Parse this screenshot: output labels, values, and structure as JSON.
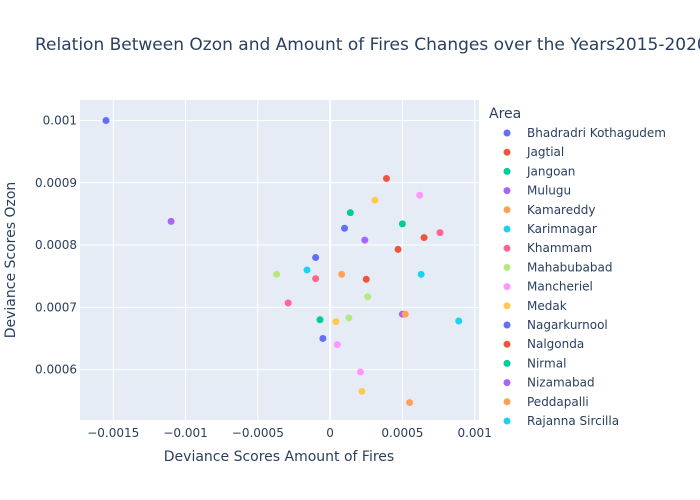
{
  "chart_data": {
    "type": "scatter",
    "title": "Relation Between Ozon and Amount of Fires Changes over the Years2015-2020",
    "xlabel": "Deviance Scores Amount of Fires",
    "ylabel": "Deviance Scores Ozon",
    "xlim": [
      -0.00173,
      0.00103
    ],
    "ylim": [
      0.000519,
      0.001033
    ],
    "x_ticks": [
      -0.0015,
      -0.001,
      -0.0005,
      0,
      0.0005,
      0.001
    ],
    "x_tick_labels": [
      "−0.0015",
      "−0.001",
      "−0.0005",
      "0",
      "0.0005",
      "0.001"
    ],
    "y_ticks": [
      0.0006,
      0.0007,
      0.0008,
      0.0009,
      0.001
    ],
    "y_tick_labels": [
      "0.0006",
      "0.0007",
      "0.0008",
      "0.0009",
      "0.001"
    ],
    "grid": true,
    "legend_title": "Area",
    "legend_position": "right",
    "series": [
      {
        "name": "Bhadradri Kothagudem",
        "color": "#636efa",
        "points": [
          [
            -0.00155,
            0.001
          ],
          [
            0.0001,
            0.000827
          ],
          [
            -5e-05,
            0.00065
          ]
        ]
      },
      {
        "name": "Jagtial",
        "color": "#EF553B",
        "points": [
          [
            0.00039,
            0.000907
          ],
          [
            0.00065,
            0.000812
          ],
          [
            0.00047,
            0.000793
          ],
          [
            0.00025,
            0.000745
          ]
        ]
      },
      {
        "name": "Jangoan",
        "color": "#00cc96",
        "points": [
          [
            0.00014,
            0.000852
          ],
          [
            0.0005,
            0.000834
          ],
          [
            -7e-05,
            0.00068
          ]
        ]
      },
      {
        "name": "Mulugu",
        "color": "#ab63fa",
        "points": [
          [
            -0.0011,
            0.000838
          ],
          [
            0.00024,
            0.000808
          ],
          [
            0.0005,
            0.000689
          ]
        ]
      },
      {
        "name": "Kamareddy",
        "color": "#FFA15A",
        "points": [
          [
            8e-05,
            0.000753
          ],
          [
            0.00052,
            0.000689
          ],
          [
            0.00055,
            0.000547
          ]
        ]
      },
      {
        "name": "Karimnagar",
        "color": "#19d3f3",
        "points": [
          [
            -0.00016,
            0.00076
          ],
          [
            0.00063,
            0.000753
          ],
          [
            0.00089,
            0.000678
          ]
        ]
      },
      {
        "name": "Khammam",
        "color": "#FF6692",
        "points": [
          [
            0.00076,
            0.00082
          ],
          [
            -0.0001,
            0.000746
          ],
          [
            -0.00029,
            0.000707
          ]
        ]
      },
      {
        "name": "Mahabubabad",
        "color": "#B6E880",
        "points": [
          [
            -0.00037,
            0.000753
          ],
          [
            0.00026,
            0.000717
          ],
          [
            0.00013,
            0.000683
          ]
        ]
      },
      {
        "name": "Mancheriel",
        "color": "#FF97FF",
        "points": [
          [
            0.00062,
            0.00088
          ],
          [
            5e-05,
            0.00064
          ],
          [
            0.00021,
            0.000596
          ]
        ]
      },
      {
        "name": "Medak",
        "color": "#FECB52",
        "points": [
          [
            0.00031,
            0.000872
          ],
          [
            4e-05,
            0.000677
          ],
          [
            0.00022,
            0.000565
          ]
        ]
      },
      {
        "name": "Nagarkurnool",
        "color": "#636efa",
        "points": [
          [
            -0.0001,
            0.00078
          ]
        ]
      },
      {
        "name": "Nalgonda",
        "color": "#EF553B",
        "points": []
      },
      {
        "name": "Nirmal",
        "color": "#00cc96",
        "points": []
      },
      {
        "name": "Nizamabad",
        "color": "#ab63fa",
        "points": []
      },
      {
        "name": "Peddapalli",
        "color": "#FFA15A",
        "points": []
      },
      {
        "name": "Rajanna Sircilla",
        "color": "#19d3f3",
        "points": []
      }
    ]
  }
}
